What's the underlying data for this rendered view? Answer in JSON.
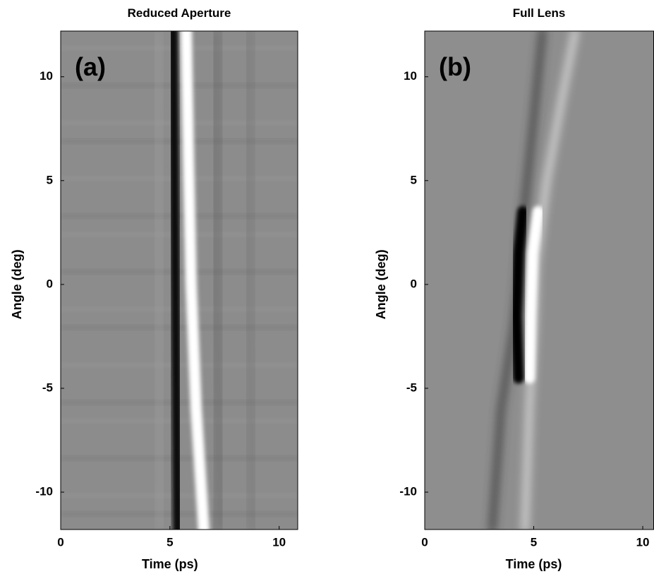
{
  "chart_data": [
    {
      "type": "image",
      "title": "Reduced Aperture",
      "panel_label": "(a)",
      "x_label": "Time (ps)",
      "y_label": "Angle (deg)",
      "xlim": [
        0,
        10.85
      ],
      "ylim": [
        -11.8,
        12.2
      ],
      "xticks": [
        0,
        5,
        10
      ],
      "yticks": [
        -10,
        -5,
        0,
        5,
        10
      ]
    },
    {
      "type": "image",
      "title": "Full Lens",
      "panel_label": "(b)",
      "x_label": "Time (ps)",
      "y_label": "Angle (deg)",
      "xlim": [
        0,
        10.5
      ],
      "ylim": [
        -11.8,
        12.2
      ],
      "xticks": [
        0,
        5,
        10
      ],
      "yticks": [
        -10,
        -5,
        0,
        5,
        10
      ]
    }
  ]
}
